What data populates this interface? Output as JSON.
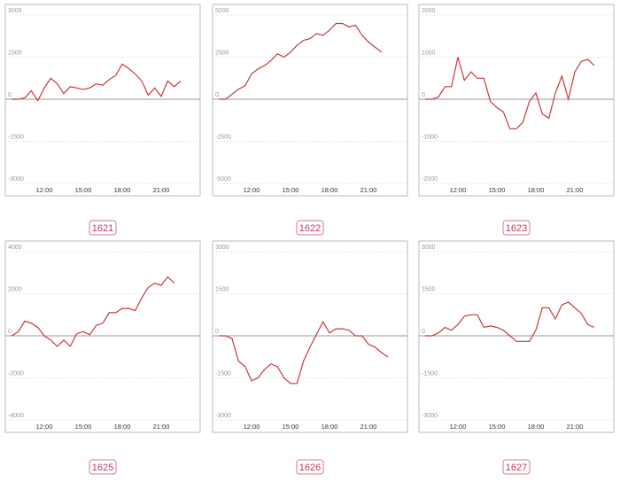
{
  "chart_data": [
    {
      "type": "line",
      "title": "1621",
      "color": "#c8383c",
      "x": [
        9.5,
        10,
        10.5,
        11,
        11.5,
        12,
        12.5,
        13,
        13.5,
        14,
        14.5,
        15,
        15.5,
        16,
        16.5,
        17,
        17.5,
        18,
        18.5,
        19,
        19.5,
        20,
        20.5,
        21,
        21.5,
        22,
        22.5
      ],
      "values": [
        0,
        0,
        50,
        300,
        -50,
        400,
        750,
        550,
        200,
        450,
        400,
        350,
        400,
        550,
        500,
        700,
        850,
        1250,
        1100,
        900,
        650,
        150,
        400,
        100,
        650,
        450,
        650
      ],
      "xlim": [
        9,
        24
      ],
      "xticks": [
        {
          "value": 12,
          "label": "12:00"
        },
        {
          "value": 15,
          "label": "15:00"
        },
        {
          "value": 18,
          "label": "18:00"
        },
        {
          "value": 21,
          "label": "21:00"
        }
      ],
      "ylim": [
        -3000,
        3000
      ],
      "yticks": [
        -3000,
        -1500,
        0,
        1500,
        3000
      ]
    },
    {
      "type": "line",
      "title": "1622",
      "color": "#c8383c",
      "x": [
        9.5,
        10,
        10.5,
        11,
        11.5,
        12,
        12.5,
        13,
        13.5,
        14,
        14.5,
        15,
        15.5,
        16,
        16.5,
        17,
        17.5,
        18,
        18.5,
        19,
        19.5,
        20,
        20.5,
        21,
        21.5,
        22
      ],
      "values": [
        0,
        0,
        300,
        600,
        800,
        1500,
        1800,
        2000,
        2300,
        2700,
        2500,
        2800,
        3200,
        3500,
        3600,
        3900,
        3800,
        4100,
        4500,
        4500,
        4300,
        4400,
        3800,
        3400,
        3100,
        2800
      ],
      "xlim": [
        9,
        24
      ],
      "xticks": [
        {
          "value": 12,
          "label": "12:00"
        },
        {
          "value": 15,
          "label": "15:00"
        },
        {
          "value": 18,
          "label": "18:00"
        },
        {
          "value": 21,
          "label": "21:00"
        }
      ],
      "ylim": [
        -5000,
        5000
      ],
      "yticks": [
        -5000,
        -2500,
        0,
        2500,
        5000
      ]
    },
    {
      "type": "line",
      "title": "1623",
      "color": "#c8383c",
      "x": [
        9.5,
        10,
        10.5,
        11,
        11.5,
        12,
        12.5,
        13,
        13.5,
        14,
        14.5,
        15,
        15.5,
        16,
        16.5,
        17,
        17.5,
        18,
        18.5,
        19,
        19.5,
        20,
        20.5,
        21,
        21.5,
        22,
        22.5
      ],
      "values": [
        0,
        0,
        50,
        300,
        300,
        1000,
        450,
        650,
        500,
        500,
        -50,
        -200,
        -300,
        -700,
        -700,
        -550,
        -50,
        150,
        -350,
        -450,
        150,
        550,
        0,
        650,
        900,
        950,
        800
      ],
      "xlim": [
        9,
        24
      ],
      "xticks": [
        {
          "value": 12,
          "label": "12:00"
        },
        {
          "value": 15,
          "label": "15:00"
        },
        {
          "value": 18,
          "label": "18:00"
        },
        {
          "value": 21,
          "label": "21:00"
        }
      ],
      "ylim": [
        -2000,
        2000
      ],
      "yticks": [
        -2000,
        -1000,
        0,
        1000,
        2000
      ]
    },
    {
      "type": "line",
      "title": "1625",
      "color": "#c8383c",
      "x": [
        9.5,
        10,
        10.5,
        11,
        11.5,
        12,
        12.5,
        13,
        13.5,
        14,
        14.5,
        15,
        15.5,
        16,
        16.5,
        17,
        17.5,
        18,
        18.5,
        19,
        19.5,
        20,
        20.5,
        21,
        21.5,
        22
      ],
      "values": [
        0,
        200,
        700,
        600,
        400,
        0,
        -200,
        -500,
        -200,
        -500,
        100,
        200,
        50,
        500,
        600,
        1100,
        1100,
        1300,
        1300,
        1200,
        1800,
        2300,
        2500,
        2400,
        2800,
        2500
      ],
      "xlim": [
        9,
        24
      ],
      "xticks": [
        {
          "value": 12,
          "label": "12:00"
        },
        {
          "value": 15,
          "label": "15:00"
        },
        {
          "value": 18,
          "label": "18:00"
        },
        {
          "value": 21,
          "label": "21:00"
        }
      ],
      "ylim": [
        -4000,
        4000
      ],
      "yticks": [
        -4000,
        -2000,
        0,
        2000,
        4000
      ]
    },
    {
      "type": "line",
      "title": "1626",
      "color": "#c8383c",
      "x": [
        9.5,
        10,
        10.5,
        11,
        11.5,
        12,
        12.5,
        13,
        13.5,
        14,
        14.5,
        15,
        15.5,
        16,
        16.5,
        17,
        17.5,
        18,
        18.5,
        19,
        19.5,
        20,
        20.5,
        21,
        21.5,
        22,
        22.5
      ],
      "values": [
        0,
        0,
        -100,
        -900,
        -1100,
        -1600,
        -1500,
        -1200,
        -1000,
        -1100,
        -1500,
        -1700,
        -1700,
        -900,
        -400,
        50,
        500,
        100,
        250,
        250,
        200,
        0,
        0,
        -300,
        -400,
        -600,
        -750
      ],
      "xlim": [
        9,
        24
      ],
      "xticks": [
        {
          "value": 12,
          "label": "12:00"
        },
        {
          "value": 15,
          "label": "15:00"
        },
        {
          "value": 18,
          "label": "18:00"
        },
        {
          "value": 21,
          "label": "21:00"
        }
      ],
      "ylim": [
        -3000,
        3000
      ],
      "yticks": [
        -3000,
        -1500,
        0,
        1500,
        3000
      ]
    },
    {
      "type": "line",
      "title": "1627",
      "color": "#c8383c",
      "x": [
        9.5,
        10,
        10.5,
        11,
        11.5,
        12,
        12.5,
        13,
        13.5,
        14,
        14.5,
        15,
        15.5,
        16,
        16.5,
        17,
        17.5,
        18,
        18.5,
        19,
        19.5,
        20,
        20.5,
        21,
        21.5,
        22,
        22.5
      ],
      "values": [
        0,
        0,
        100,
        300,
        200,
        400,
        700,
        750,
        750,
        300,
        350,
        300,
        200,
        0,
        -200,
        -200,
        -200,
        200,
        1000,
        1000,
        600,
        1100,
        1200,
        1000,
        800,
        400,
        300
      ],
      "xlim": [
        9,
        24
      ],
      "xticks": [
        {
          "value": 12,
          "label": "12:00"
        },
        {
          "value": 15,
          "label": "15:00"
        },
        {
          "value": 18,
          "label": "18:00"
        },
        {
          "value": 21,
          "label": "21:00"
        }
      ],
      "ylim": [
        -3000,
        3000
      ],
      "yticks": [
        -3000,
        -1500,
        0,
        1500,
        3000
      ]
    }
  ]
}
